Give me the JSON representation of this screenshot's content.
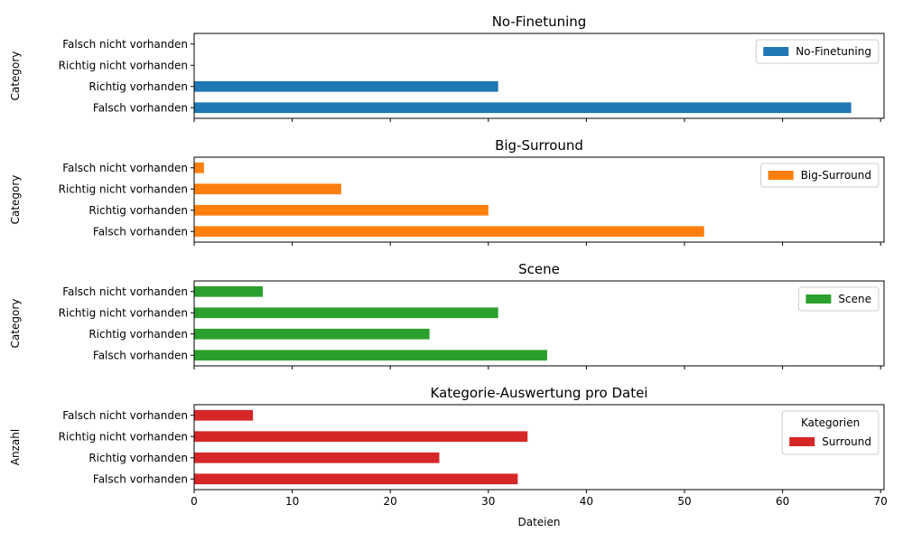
{
  "chart_data": [
    {
      "type": "bar",
      "orientation": "horizontal",
      "title": "No-Finetuning",
      "ylabel": "Category",
      "xlabel": "",
      "categories": [
        "Falsch vorhanden",
        "Richtig vorhanden",
        "Richtig nicht vorhanden",
        "Falsch nicht vorhanden"
      ],
      "series": [
        {
          "name": "No-Finetuning",
          "color": "#1f77b4",
          "values": [
            67,
            31,
            0,
            0
          ]
        }
      ],
      "legend": {
        "title": "",
        "placement": "upper right"
      },
      "xlim": [
        0,
        70.35
      ],
      "xticks": [
        "0",
        "10",
        "20",
        "30",
        "40",
        "50",
        "60",
        "70"
      ],
      "show_xtick_labels": false
    },
    {
      "type": "bar",
      "orientation": "horizontal",
      "title": "Big-Surround",
      "ylabel": "Category",
      "xlabel": "",
      "categories": [
        "Falsch vorhanden",
        "Richtig vorhanden",
        "Richtig nicht vorhanden",
        "Falsch nicht vorhanden"
      ],
      "series": [
        {
          "name": "Big-Surround",
          "color": "#ff7f0e",
          "values": [
            52,
            30,
            15,
            1
          ]
        }
      ],
      "legend": {
        "title": "",
        "placement": "upper right"
      },
      "xlim": [
        0,
        70.35
      ],
      "xticks": [
        "0",
        "10",
        "20",
        "30",
        "40",
        "50",
        "60",
        "70"
      ],
      "show_xtick_labels": false
    },
    {
      "type": "bar",
      "orientation": "horizontal",
      "title": "Scene",
      "ylabel": "Category",
      "xlabel": "",
      "categories": [
        "Falsch vorhanden",
        "Richtig vorhanden",
        "Richtig nicht vorhanden",
        "Falsch nicht vorhanden"
      ],
      "series": [
        {
          "name": "Scene",
          "color": "#2ca02c",
          "values": [
            36,
            24,
            31,
            7
          ]
        }
      ],
      "legend": {
        "title": "",
        "placement": "upper right"
      },
      "xlim": [
        0,
        70.35
      ],
      "xticks": [
        "0",
        "10",
        "20",
        "30",
        "40",
        "50",
        "60",
        "70"
      ],
      "show_xtick_labels": false
    },
    {
      "type": "bar",
      "orientation": "horizontal",
      "title": "Kategorie-Auswertung pro Datei",
      "ylabel": "Anzahl",
      "xlabel": "Dateien",
      "categories": [
        "Falsch vorhanden",
        "Richtig vorhanden",
        "Richtig nicht vorhanden",
        "Falsch nicht vorhanden"
      ],
      "series": [
        {
          "name": "Surround",
          "color": "#d62728",
          "values": [
            33,
            25,
            34,
            6
          ]
        }
      ],
      "legend": {
        "title": "Kategorien",
        "placement": "upper right"
      },
      "xlim": [
        0,
        70.35
      ],
      "xticks": [
        "0",
        "10",
        "20",
        "30",
        "40",
        "50",
        "60",
        "70"
      ],
      "show_xtick_labels": true
    }
  ]
}
